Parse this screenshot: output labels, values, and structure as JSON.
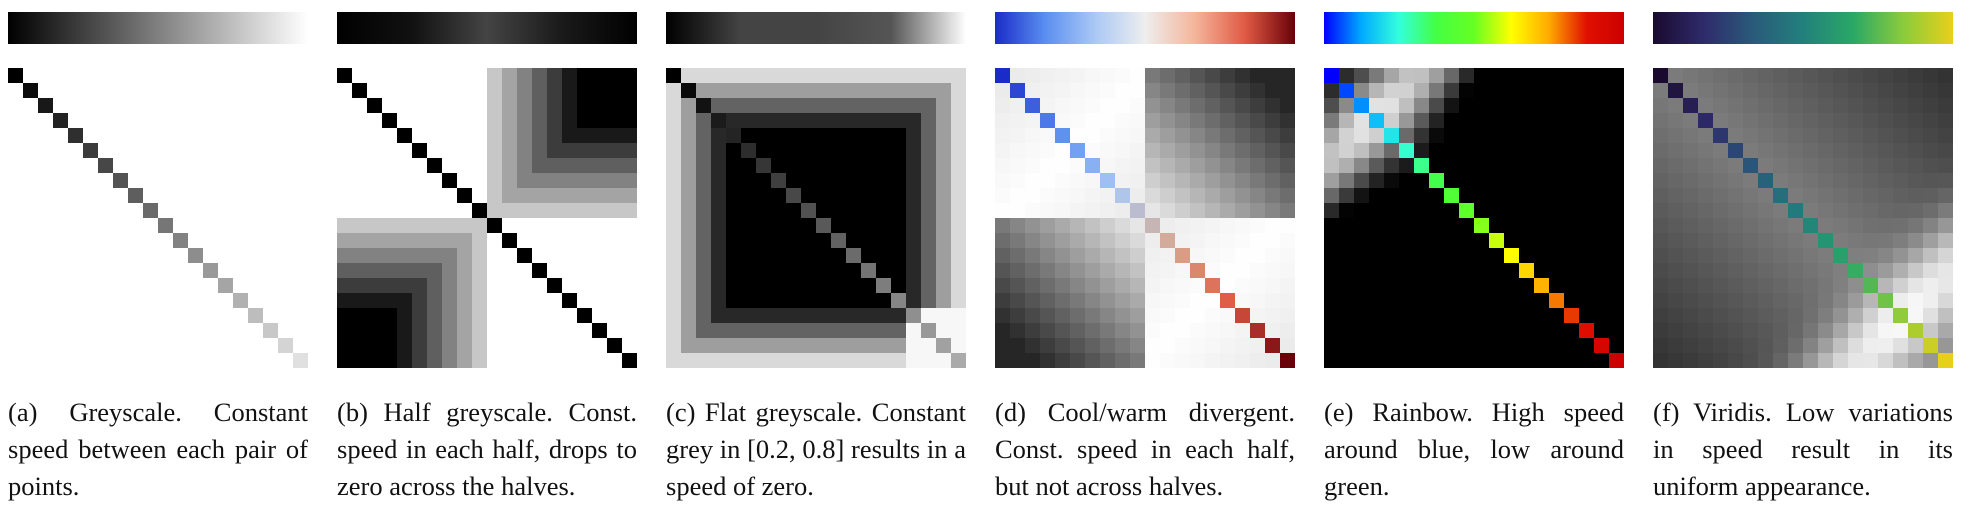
{
  "figure": {
    "grid_n": 20,
    "panels": [
      {
        "id": "a",
        "tag": "(a)",
        "caption": "Greyscale. Constant speed between each pair of points.",
        "colormap_stops": [
          "#000000",
          "#ffffff"
        ],
        "diag_colormap_stops": [
          "#000000",
          "#e0e0e0"
        ],
        "distance_model": "linear"
      },
      {
        "id": "b",
        "tag": "(b)",
        "caption": "Half greyscale. Const. speed in each half, drops to zero across the halves.",
        "colormap_stops": [
          "#000000",
          "#111111",
          "#444444",
          "#1a1a1a",
          "#000000"
        ],
        "diag_colormap_stops": [
          "#000000",
          "#000000"
        ],
        "distance_model": "halves"
      },
      {
        "id": "c",
        "tag": "(c)",
        "caption": "Flat greyscale. Constant grey in [0.2, 0.8] results in a speed of zero.",
        "colormap_stops": [
          "#000000",
          "#444444",
          "#444444",
          "#555555",
          "#ffffff"
        ],
        "diag_colormap_stops": [
          "#000000",
          "#555555",
          "#aaaaaa"
        ],
        "distance_model": "flat"
      },
      {
        "id": "d",
        "tag": "(d)",
        "caption": "Cool/warm divergent. Const. speed in each half, but not across halves.",
        "colormap_stops": [
          "#1a2cc8",
          "#5a8ef0",
          "#aac8f5",
          "#eeeeee",
          "#f4b59a",
          "#e05a44",
          "#6a0008"
        ],
        "diag_colormap_stops": [
          "#1a2cc8",
          "#5a8ef0",
          "#aac8f5",
          "#d8a890",
          "#e05a44",
          "#6a0008"
        ],
        "distance_model": "divergent"
      },
      {
        "id": "e",
        "tag": "(e)",
        "caption": "Rainbow. High speed around blue, low around green.",
        "colormap_stops": [
          "#0000ff",
          "#00aaff",
          "#33ffdd",
          "#44ff44",
          "#66ff22",
          "#ffff00",
          "#ffaa00",
          "#e01000",
          "#cc0000"
        ],
        "diag_colormap_stops": [
          "#0000ff",
          "#00aaff",
          "#33ffdd",
          "#44ff44",
          "#66ff22",
          "#ffff00",
          "#ffaa00",
          "#e01000",
          "#cc0000"
        ],
        "distance_model": "rainbow"
      },
      {
        "id": "f",
        "tag": "(f)",
        "caption": "Viridis. Low variations in speed result in its uniform appearance.",
        "colormap_stops": [
          "#190a2e",
          "#2e2a6a",
          "#2a5a7a",
          "#22807c",
          "#2aa866",
          "#8acb3c",
          "#e8d01a"
        ],
        "diag_colormap_stops": [
          "#190a2e",
          "#2e2a6a",
          "#2a5a7a",
          "#22807c",
          "#2aa866",
          "#8acb3c",
          "#e8d01a"
        ],
        "distance_model": "viridis"
      }
    ]
  }
}
